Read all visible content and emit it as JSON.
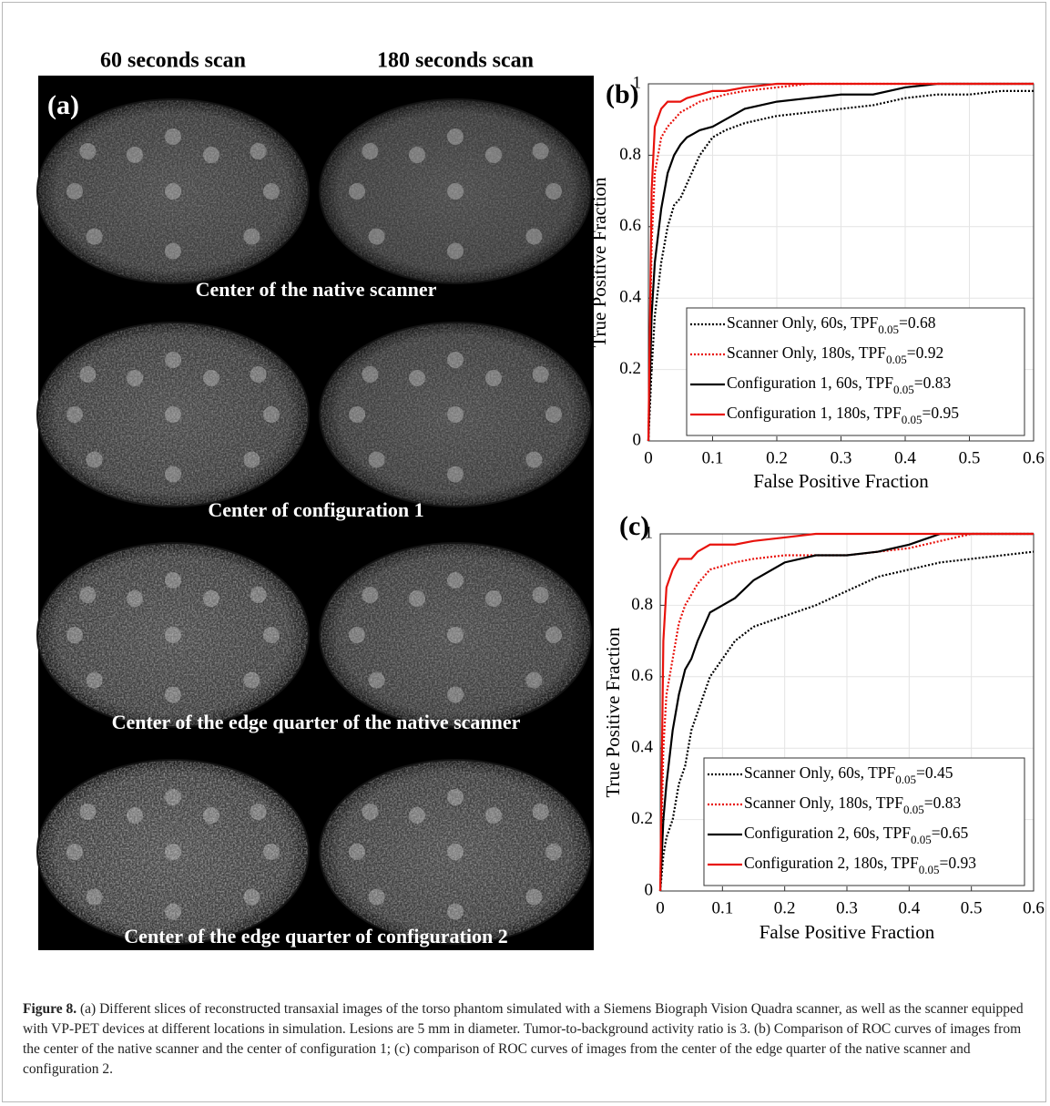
{
  "panel_a": {
    "label": "(a)",
    "column_titles": [
      "60 seconds scan",
      "180 seconds scan"
    ],
    "row_labels": [
      "Center of the native scanner",
      "Center of configuration 1",
      "Center of the edge quarter of the native scanner",
      "Center of the edge quarter of configuration 2"
    ]
  },
  "chart_data": [
    {
      "type": "line",
      "label": "(b)",
      "x_label": "False Positive Fraction",
      "y_label": "True Positive Fraction",
      "xlim": [
        0,
        0.6
      ],
      "ylim": [
        0,
        1
      ],
      "xticks": [
        0,
        0.1,
        0.2,
        0.3,
        0.4,
        0.5,
        0.6
      ],
      "yticks": [
        0,
        0.2,
        0.4,
        0.6,
        0.8,
        1
      ],
      "grid": true,
      "legend": "lower right",
      "x": [
        0,
        0.005,
        0.01,
        0.02,
        0.03,
        0.04,
        0.05,
        0.06,
        0.08,
        0.1,
        0.12,
        0.15,
        0.2,
        0.25,
        0.3,
        0.35,
        0.4,
        0.45,
        0.5,
        0.55,
        0.6
      ],
      "series": [
        {
          "name": "Scanner Only, 60s, TPF0.05=0.68",
          "color": "#000000",
          "linestyle": "dotted",
          "values": [
            0,
            0.2,
            0.35,
            0.5,
            0.6,
            0.66,
            0.68,
            0.72,
            0.8,
            0.85,
            0.87,
            0.89,
            0.91,
            0.92,
            0.93,
            0.94,
            0.96,
            0.97,
            0.97,
            0.98,
            0.98
          ]
        },
        {
          "name": "Scanner Only, 180s, TPF0.05=0.92",
          "color": "#e8120c",
          "linestyle": "dotted",
          "values": [
            0,
            0.55,
            0.75,
            0.85,
            0.88,
            0.9,
            0.92,
            0.93,
            0.95,
            0.96,
            0.97,
            0.98,
            0.99,
            1,
            1,
            1,
            1,
            1,
            1,
            1,
            1
          ]
        },
        {
          "name": "Configuration 1, 60s, TPF0.05=0.83",
          "color": "#000000",
          "linestyle": "solid",
          "values": [
            0,
            0.35,
            0.5,
            0.65,
            0.75,
            0.8,
            0.83,
            0.85,
            0.87,
            0.88,
            0.9,
            0.93,
            0.95,
            0.96,
            0.97,
            0.97,
            0.99,
            1,
            1,
            1,
            1
          ]
        },
        {
          "name": "Configuration 1, 180s, TPF0.05=0.95",
          "color": "#e8120c",
          "linestyle": "solid",
          "values": [
            0,
            0.7,
            0.88,
            0.93,
            0.95,
            0.95,
            0.95,
            0.96,
            0.97,
            0.98,
            0.98,
            0.99,
            1,
            1,
            1,
            1,
            1,
            1,
            1,
            1,
            1
          ]
        }
      ]
    },
    {
      "type": "line",
      "label": "(c)",
      "x_label": "False Positive Fraction",
      "y_label": "True Positive Fraction",
      "xlim": [
        0,
        0.6
      ],
      "ylim": [
        0,
        1
      ],
      "xticks": [
        0,
        0.1,
        0.2,
        0.3,
        0.4,
        0.5,
        0.6
      ],
      "yticks": [
        0,
        0.2,
        0.4,
        0.6,
        0.8,
        1
      ],
      "grid": true,
      "legend": "lower right",
      "x": [
        0,
        0.005,
        0.01,
        0.02,
        0.03,
        0.04,
        0.05,
        0.06,
        0.08,
        0.1,
        0.12,
        0.15,
        0.2,
        0.25,
        0.3,
        0.35,
        0.4,
        0.45,
        0.5,
        0.55,
        0.6
      ],
      "series": [
        {
          "name": "Scanner Only, 60s, TPF0.05=0.45",
          "color": "#000000",
          "linestyle": "dotted",
          "values": [
            0,
            0.1,
            0.15,
            0.2,
            0.3,
            0.35,
            0.45,
            0.5,
            0.6,
            0.65,
            0.7,
            0.74,
            0.77,
            0.8,
            0.84,
            0.88,
            0.9,
            0.92,
            0.93,
            0.94,
            0.95
          ]
        },
        {
          "name": "Scanner Only, 180s, TPF0.05=0.83",
          "color": "#e8120c",
          "linestyle": "dotted",
          "values": [
            0,
            0.4,
            0.55,
            0.65,
            0.75,
            0.8,
            0.83,
            0.86,
            0.9,
            0.91,
            0.92,
            0.93,
            0.94,
            0.94,
            0.94,
            0.95,
            0.96,
            0.98,
            1,
            1,
            1
          ]
        },
        {
          "name": "Configuration 2, 60s, TPF0.05=0.65",
          "color": "#000000",
          "linestyle": "solid",
          "values": [
            0,
            0.2,
            0.3,
            0.45,
            0.55,
            0.62,
            0.65,
            0.7,
            0.78,
            0.8,
            0.82,
            0.87,
            0.92,
            0.94,
            0.94,
            0.95,
            0.97,
            1,
            1,
            1,
            1
          ]
        },
        {
          "name": "Configuration 2, 180s, TPF0.05=0.93",
          "color": "#e8120c",
          "linestyle": "solid",
          "values": [
            0,
            0.7,
            0.85,
            0.9,
            0.93,
            0.93,
            0.93,
            0.95,
            0.97,
            0.97,
            0.97,
            0.98,
            0.99,
            1,
            1,
            1,
            1,
            1,
            1,
            1,
            1
          ]
        }
      ]
    }
  ],
  "caption": {
    "label": "Figure 8.",
    "text": "(a) Different slices of reconstructed transaxial images of the torso phantom simulated with a Siemens Biograph Vision Quadra scanner, as well as the scanner equipped with VP-PET devices at different locations in simulation. Lesions are 5 mm in diameter. Tumor-to-background activity ratio is 3. (b) Comparison of ROC curves of images from the center of the native scanner and the center of configuration 1; (c) comparison of ROC curves of images from the center of the edge quarter of the native scanner and configuration 2."
  }
}
